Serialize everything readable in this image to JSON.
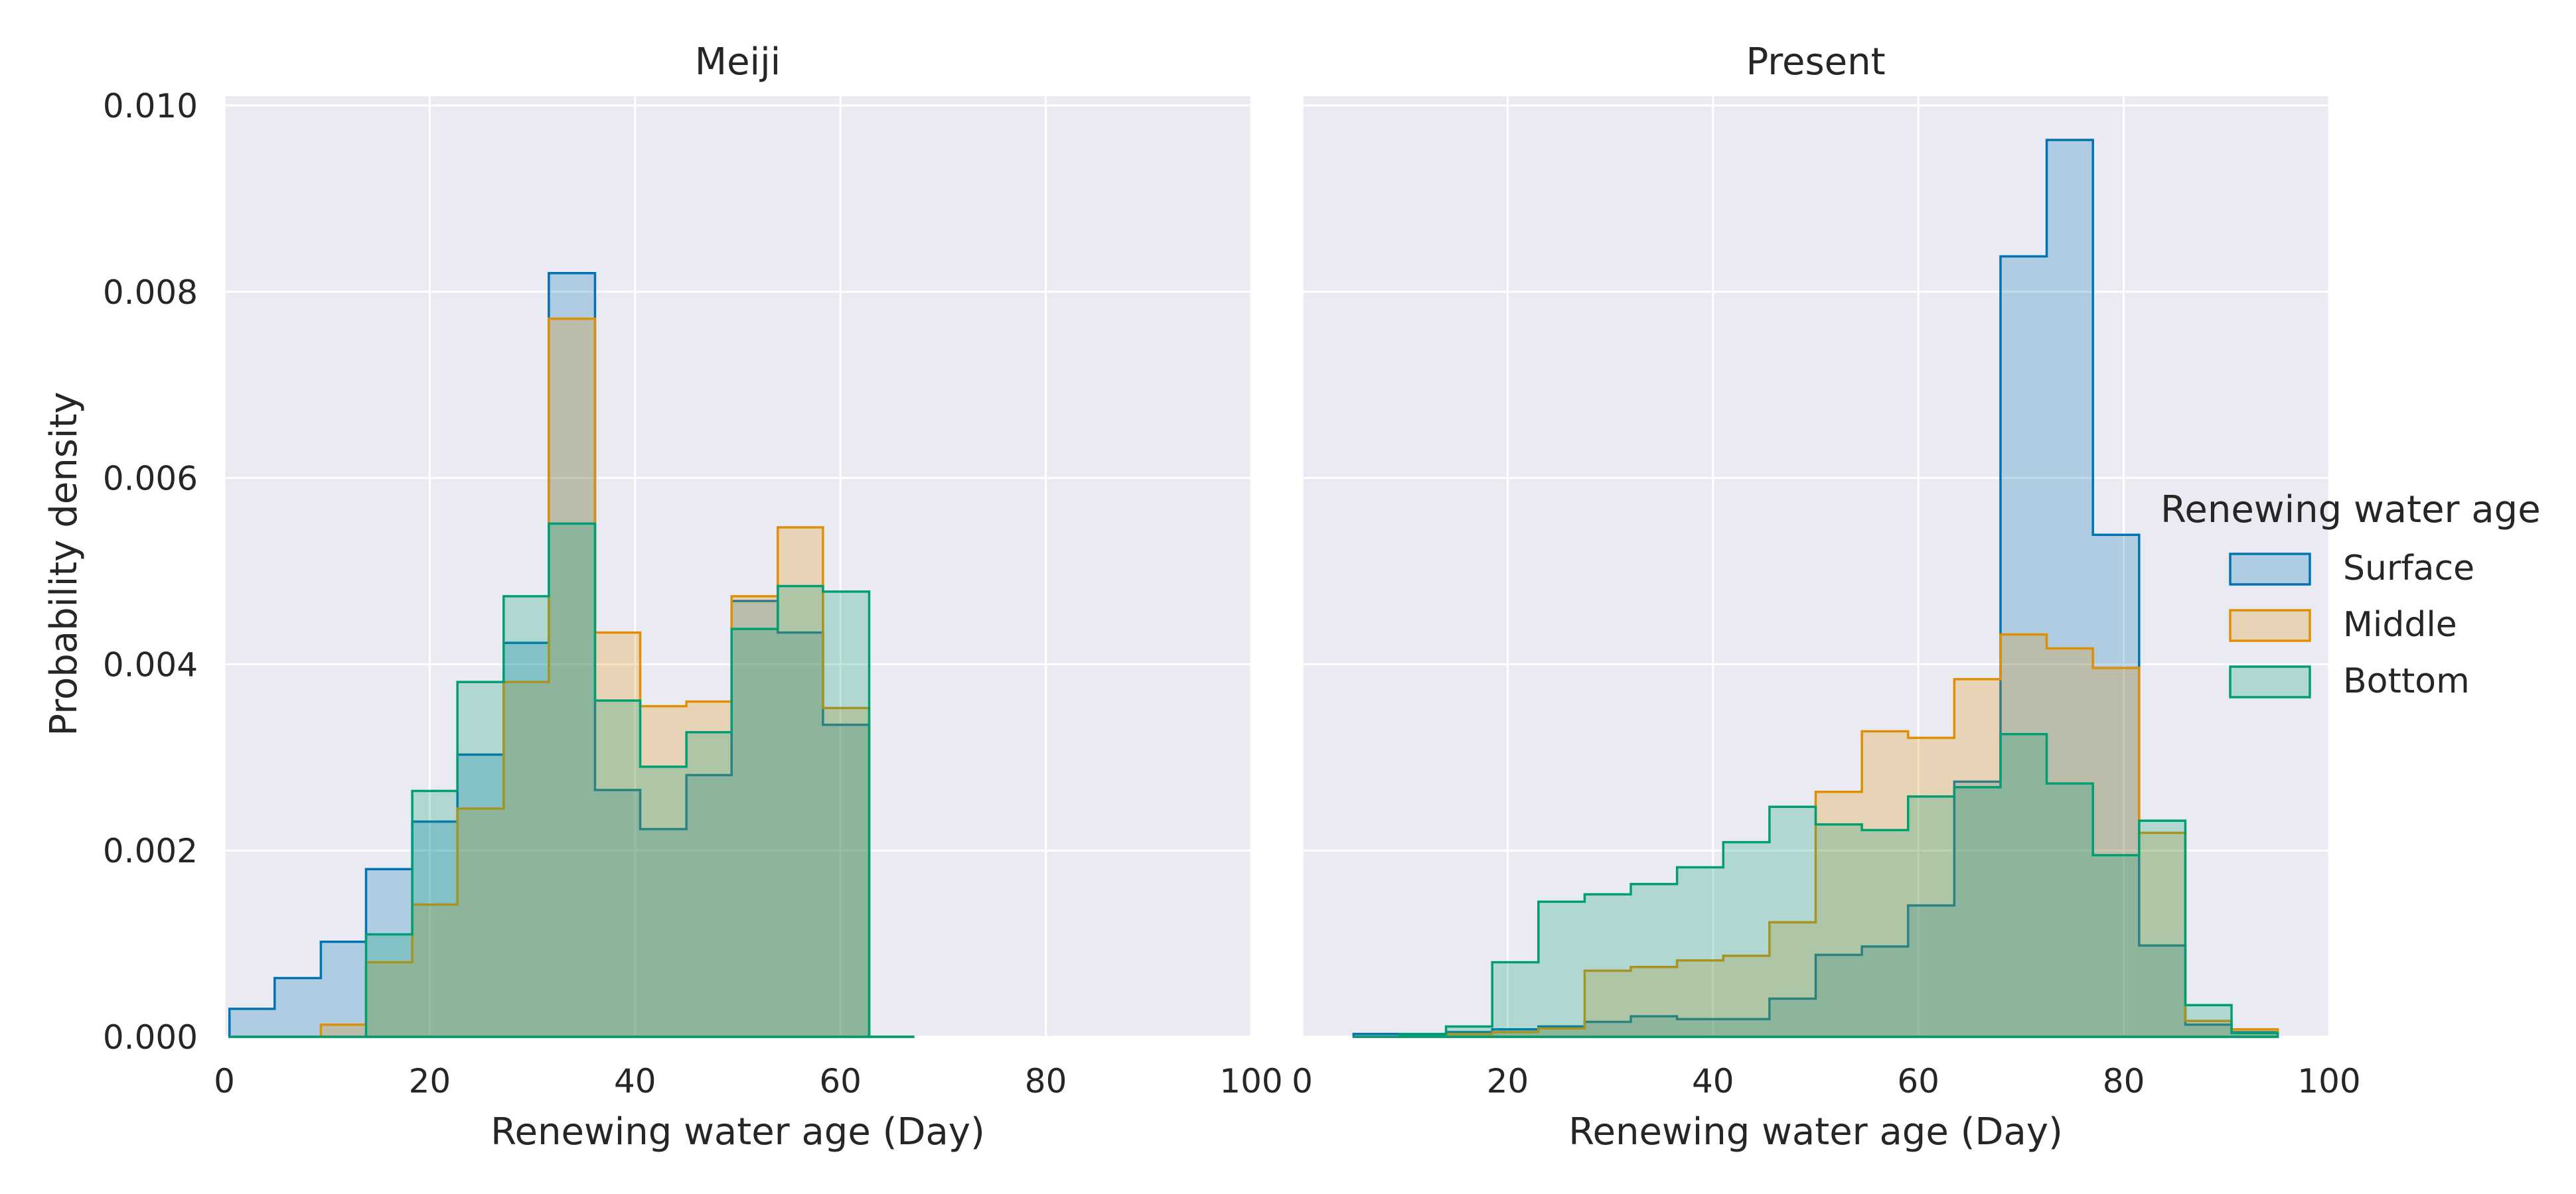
{
  "chart_data": {
    "type": "histogram",
    "ylabel": "Probability density",
    "ylim": [
      0,
      0.0101
    ],
    "yticks": [
      "0.000",
      "0.002",
      "0.004",
      "0.006",
      "0.008",
      "0.010"
    ],
    "ytick_values": [
      0,
      0.002,
      0.004,
      0.006,
      0.008,
      0.01
    ],
    "grid": true,
    "legend": {
      "title": "Renewing water age",
      "placement": "right",
      "entries": [
        "Surface",
        "Middle",
        "Bottom"
      ]
    },
    "colors": {
      "Surface": "#0173b2",
      "Middle": "#de8f05",
      "Bottom": "#029e73",
      "panel_bg": "#eaeaf2",
      "grid": "#ffffff"
    },
    "panels": [
      {
        "title": "Meiji",
        "xlabel": "Renewing water age (Day)",
        "xlim": [
          0,
          100
        ],
        "xticks": [
          "0",
          "20",
          "40",
          "60",
          "80",
          "100"
        ],
        "xtick_values": [
          0,
          20,
          40,
          60,
          80,
          100
        ],
        "bin_edges": [
          0.5,
          4.9,
          9.4,
          13.8,
          18.3,
          22.7,
          27.2,
          31.6,
          36.1,
          40.5,
          45.0,
          49.4,
          53.9,
          58.3,
          62.8,
          67.2
        ],
        "series": [
          {
            "name": "Surface",
            "values": [
              0.0003,
              0.00063,
              0.00102,
              0.0018,
              0.00231,
              0.00303,
              0.00423,
              0.0082,
              0.00265,
              0.00223,
              0.00281,
              0.00468,
              0.00434,
              0.00335,
              0.0
            ]
          },
          {
            "name": "Middle",
            "values": [
              0.0,
              0.0,
              0.00013,
              0.0008,
              0.00142,
              0.00245,
              0.00381,
              0.00771,
              0.00434,
              0.00355,
              0.0036,
              0.00473,
              0.00547,
              0.00353,
              0.0
            ]
          },
          {
            "name": "Bottom",
            "values": [
              0.0,
              0.0,
              0.0,
              0.0011,
              0.00264,
              0.00381,
              0.00473,
              0.00551,
              0.00361,
              0.0029,
              0.00327,
              0.00438,
              0.00484,
              0.00478,
              0.0
            ]
          }
        ]
      },
      {
        "title": "Present",
        "xlabel": "Renewing water age (Day)",
        "xlim": [
          0,
          100
        ],
        "xticks": [
          "0",
          "20",
          "40",
          "60",
          "80",
          "100"
        ],
        "xtick_values": [
          0,
          20,
          40,
          60,
          80,
          100
        ],
        "bin_edges": [
          5.0,
          9.5,
          14.0,
          18.5,
          23.0,
          27.5,
          32.0,
          36.5,
          41.0,
          45.5,
          50.0,
          54.5,
          59.0,
          63.5,
          68.0,
          72.5,
          77.0,
          81.5,
          86.0,
          90.5,
          95.0
        ],
        "series": [
          {
            "name": "Surface",
            "values": [
              3e-05,
              2e-05,
              5e-05,
              8e-05,
              0.00011,
              0.00016,
              0.00022,
              0.00019,
              0.00019,
              0.00041,
              0.00088,
              0.00097,
              0.00141,
              0.00274,
              0.00838,
              0.00963,
              0.00539,
              0.00098,
              0.00013,
              5e-05
            ]
          },
          {
            "name": "Middle",
            "values": [
              0.0,
              0.0,
              3e-05,
              5e-05,
              9e-05,
              0.00071,
              0.00075,
              0.00082,
              0.00087,
              0.00123,
              0.00263,
              0.00328,
              0.00321,
              0.00384,
              0.00432,
              0.00417,
              0.00396,
              0.00219,
              0.00017,
              8e-05
            ]
          },
          {
            "name": "Bottom",
            "values": [
              0.0,
              3e-05,
              0.00011,
              0.0008,
              0.00145,
              0.00153,
              0.00164,
              0.00182,
              0.00209,
              0.00247,
              0.00228,
              0.00222,
              0.00258,
              0.00268,
              0.00325,
              0.00272,
              0.00195,
              0.00232,
              0.00034,
              4e-05
            ]
          }
        ]
      }
    ]
  }
}
